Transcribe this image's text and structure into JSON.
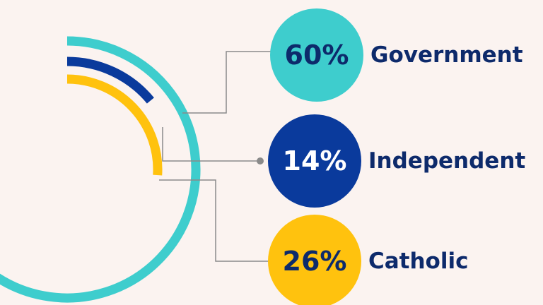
{
  "chart_data": {
    "type": "radial",
    "categories": [
      "Government",
      "Independent",
      "Catholic"
    ],
    "values": [
      60,
      14,
      26
    ],
    "value_labels": [
      "60%",
      "14%",
      "26%"
    ],
    "colors": [
      "#3ecdcd",
      "#0a3a9c",
      "#ffc20e"
    ]
  }
}
